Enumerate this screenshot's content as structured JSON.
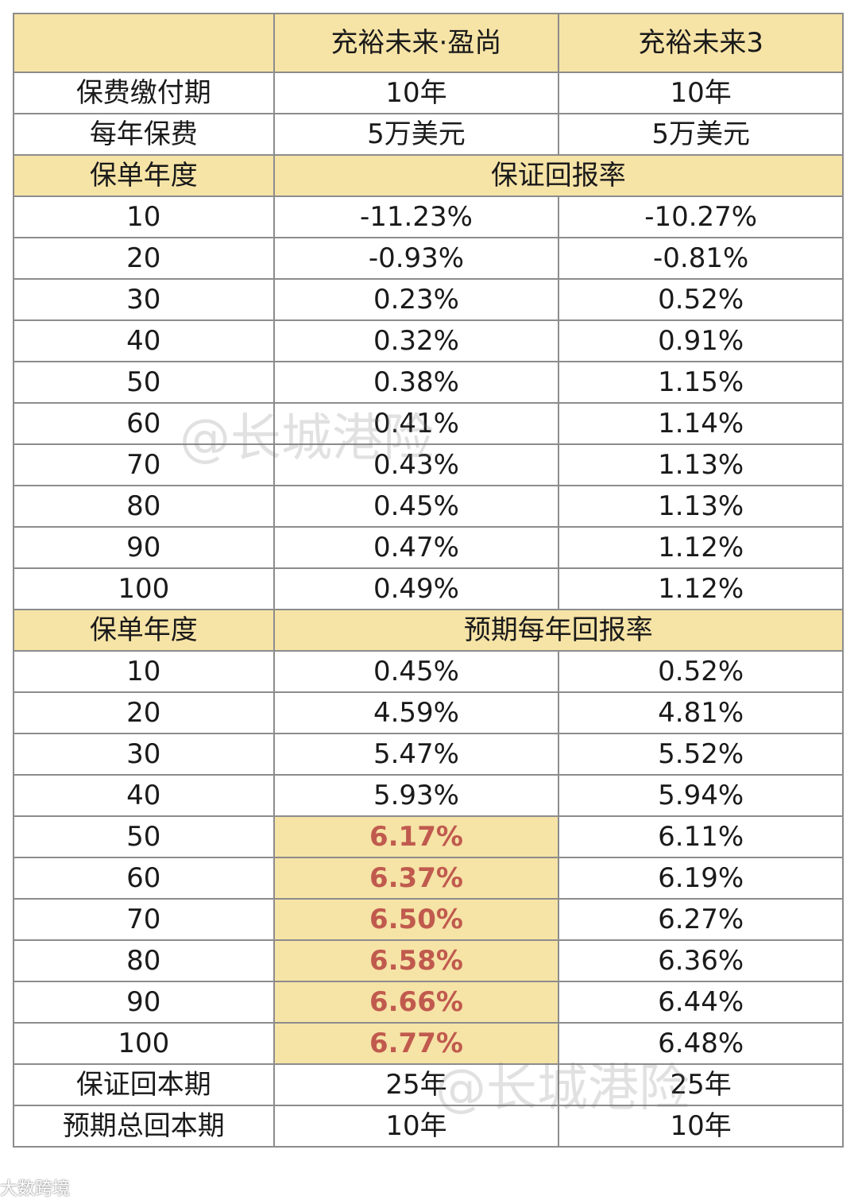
{
  "table": {
    "header": [
      "",
      "充裕未来·盈尚",
      "充裕未来3"
    ],
    "basic_rows": [
      {
        "label": "保费缴付期",
        "a": "10年",
        "b": "10年"
      },
      {
        "label": "每年保费",
        "a": "5万美元",
        "b": "5万美元"
      }
    ],
    "guaranteed": {
      "label": "保单年度",
      "title": "保证回报率",
      "rows": [
        {
          "year": "10",
          "a": "-11.23%",
          "b": "-10.27%"
        },
        {
          "year": "20",
          "a": "-0.93%",
          "b": "-0.81%"
        },
        {
          "year": "30",
          "a": "0.23%",
          "b": "0.52%"
        },
        {
          "year": "40",
          "a": "0.32%",
          "b": "0.91%"
        },
        {
          "year": "50",
          "a": "0.38%",
          "b": "1.15%"
        },
        {
          "year": "60",
          "a": "0.41%",
          "b": "1.14%"
        },
        {
          "year": "70",
          "a": "0.43%",
          "b": "1.13%"
        },
        {
          "year": "80",
          "a": "0.45%",
          "b": "1.13%"
        },
        {
          "year": "90",
          "a": "0.47%",
          "b": "1.12%"
        },
        {
          "year": "100",
          "a": "0.49%",
          "b": "1.12%"
        }
      ]
    },
    "expected": {
      "label": "保单年度",
      "title": "预期每年回报率",
      "rows": [
        {
          "year": "10",
          "a": "0.45%",
          "b": "0.52%",
          "hl": false
        },
        {
          "year": "20",
          "a": "4.59%",
          "b": "4.81%",
          "hl": false
        },
        {
          "year": "30",
          "a": "5.47%",
          "b": "5.52%",
          "hl": false
        },
        {
          "year": "40",
          "a": "5.93%",
          "b": "5.94%",
          "hl": false
        },
        {
          "year": "50",
          "a": "6.17%",
          "b": "6.11%",
          "hl": true
        },
        {
          "year": "60",
          "a": "6.37%",
          "b": "6.19%",
          "hl": true
        },
        {
          "year": "70",
          "a": "6.50%",
          "b": "6.27%",
          "hl": true
        },
        {
          "year": "80",
          "a": "6.58%",
          "b": "6.36%",
          "hl": true
        },
        {
          "year": "90",
          "a": "6.66%",
          "b": "6.44%",
          "hl": true
        },
        {
          "year": "100",
          "a": "6.77%",
          "b": "6.48%",
          "hl": true
        }
      ]
    },
    "footer_rows": [
      {
        "label": "保证回本期",
        "a": "25年",
        "b": "25年"
      },
      {
        "label": "预期总回本期",
        "a": "10年",
        "b": "10年"
      }
    ]
  },
  "watermark": {
    "text": "@长城港险"
  },
  "corner_tag": {
    "text": "大数跨境"
  },
  "colors": {
    "header_bg": "#f6e3a6",
    "highlight_text": "#c05a4e",
    "border": "#8c8c8c"
  }
}
